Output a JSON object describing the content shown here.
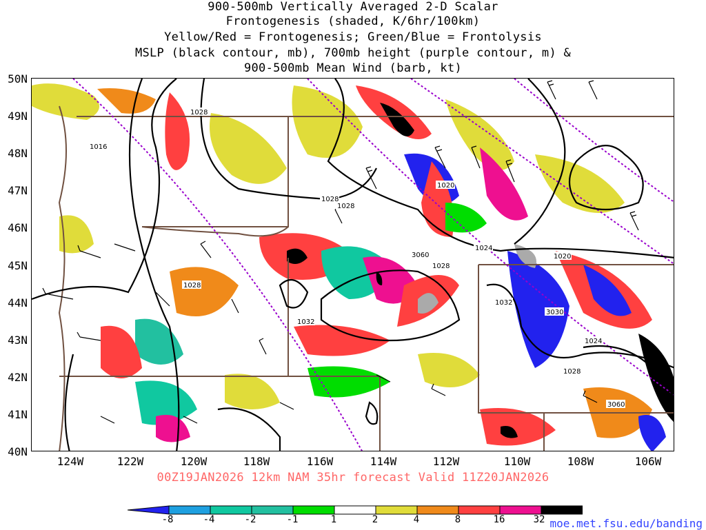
{
  "title": {
    "line1": "900-500mb Vertically Averaged 2-D Scalar",
    "line2": "Frontogenesis (shaded, K/6hr/100km)",
    "line3": "Yellow/Red = Frontogenesis;  Green/Blue = Frontolysis",
    "line4": "MSLP (black contour, mb), 700mb height (purple contour, m) &",
    "line5": "900-500mb Mean Wind (barb, kt)"
  },
  "latitudes": [
    "50N",
    "49N",
    "48N",
    "47N",
    "46N",
    "45N",
    "44N",
    "43N",
    "42N",
    "41N",
    "40N"
  ],
  "longitudes": [
    "124W",
    "122W",
    "120W",
    "118W",
    "116W",
    "114W",
    "112W",
    "110W",
    "108W",
    "106W"
  ],
  "valid_text": "00Z19JAN2026 12km NAM 35hr forecast Valid 11Z20JAN2026",
  "colorbar": {
    "labels": [
      "-8",
      "-4",
      "-2",
      "-1",
      "1",
      "2",
      "4",
      "8",
      "16",
      "32"
    ],
    "colors": [
      "#2222ee",
      "#1ea0e0",
      "#10c8a0",
      "#22c0a0",
      "#00dd00",
      "#ffffff",
      "#e0dc3a",
      "#f08a1a",
      "#ff4040",
      "#ee1090",
      "#000000",
      "#aaaaaa"
    ]
  },
  "contour_labels": {
    "mslp": [
      "1028",
      "1016",
      "1020",
      "1028",
      "1028",
      "1024",
      "1028",
      "1020",
      "1028",
      "1032",
      "1032",
      "1024",
      "1028"
    ],
    "height": [
      "3060",
      "3030",
      "3060"
    ]
  },
  "credit": "moe.met.fsu.edu/banding"
}
